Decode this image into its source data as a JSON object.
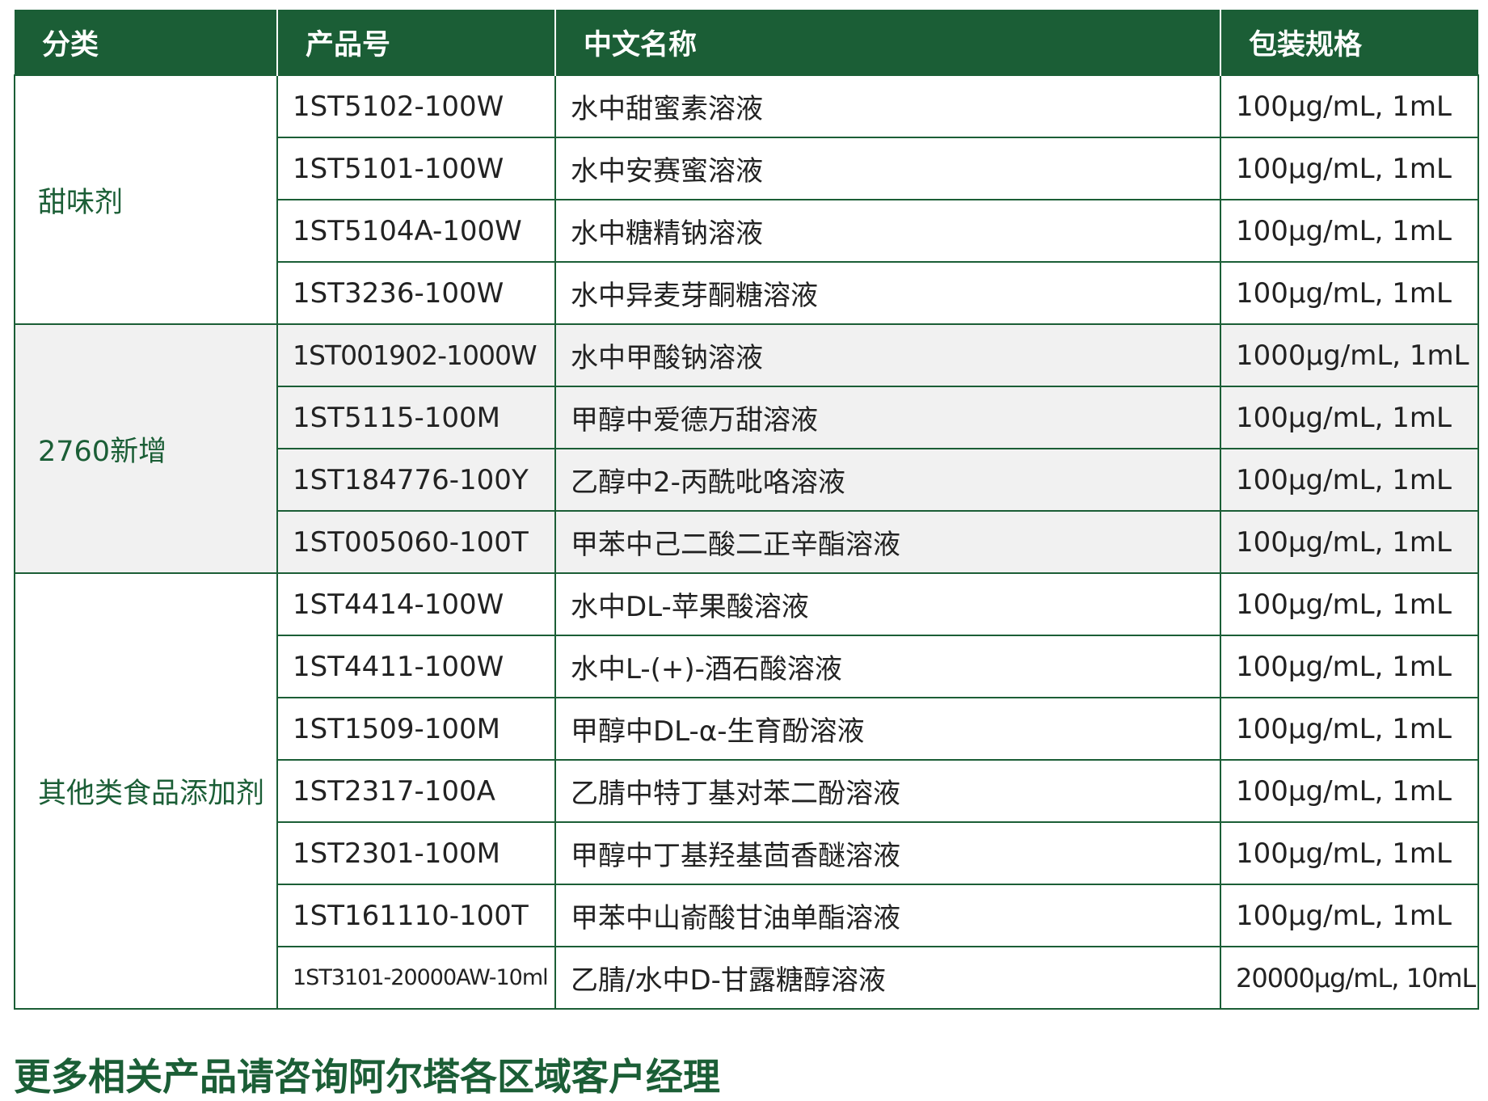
{
  "table": {
    "header": [
      "分类",
      "产品号",
      "中文名称",
      "包装规格"
    ],
    "groups": [
      {
        "category": "甜味剂",
        "rows": [
          [
            "1ST5102-100W",
            "水中甜蜜素溶液",
            "100μg/mL, 1mL"
          ],
          [
            "1ST5101-100W",
            "水中安赛蜜溶液",
            "100μg/mL, 1mL"
          ],
          [
            "1ST5104A-100W",
            "水中糖精钠溶液",
            "100μg/mL, 1mL"
          ],
          [
            "1ST3236-100W",
            "水中异麦芽酮糖溶液",
            "100μg/mL, 1mL"
          ]
        ]
      },
      {
        "category": "2760新增",
        "rows": [
          [
            "1ST001902-1000W",
            "水中甲酸钠溶液",
            "1000μg/mL, 1mL"
          ],
          [
            "1ST5115-100M",
            "甲醇中爱德万甜溶液",
            "100μg/mL, 1mL"
          ],
          [
            "1ST184776-100Y",
            "乙醇中2-丙酰吡咯溶液",
            "100μg/mL, 1mL"
          ],
          [
            "1ST005060-100T",
            "甲苯中己二酸二正辛酯溶液",
            "100μg/mL, 1mL"
          ]
        ]
      },
      {
        "category": "其他类食品添加剂",
        "rows": [
          [
            "1ST4414-100W",
            "水中DL-苹果酸溶液",
            "100μg/mL, 1mL"
          ],
          [
            "1ST4411-100W",
            "水中L-(+)-酒石酸溶液",
            "100μg/mL, 1mL"
          ],
          [
            "1ST1509-100M",
            "甲醇中DL-α-生育酚溶液",
            "100μg/mL, 1mL"
          ],
          [
            "1ST2317-100A",
            "乙腈中特丁基对苯二酚溶液",
            "100μg/mL, 1mL"
          ],
          [
            "1ST2301-100M",
            "甲醇中丁基羟基茴香醚溶液",
            "100μg/mL, 1mL"
          ],
          [
            "1ST161110-100T",
            "甲苯中山嵛酸甘油单酯溶液",
            "100μg/mL, 1mL"
          ],
          [
            "1ST3101-20000AW-10ml",
            "乙腈/水中D-甘露糖醇溶液",
            "20000μg/mL, 10mL"
          ]
        ]
      }
    ]
  },
  "footer": "更多相关产品请咨询阿尔塔各区域客户经理"
}
